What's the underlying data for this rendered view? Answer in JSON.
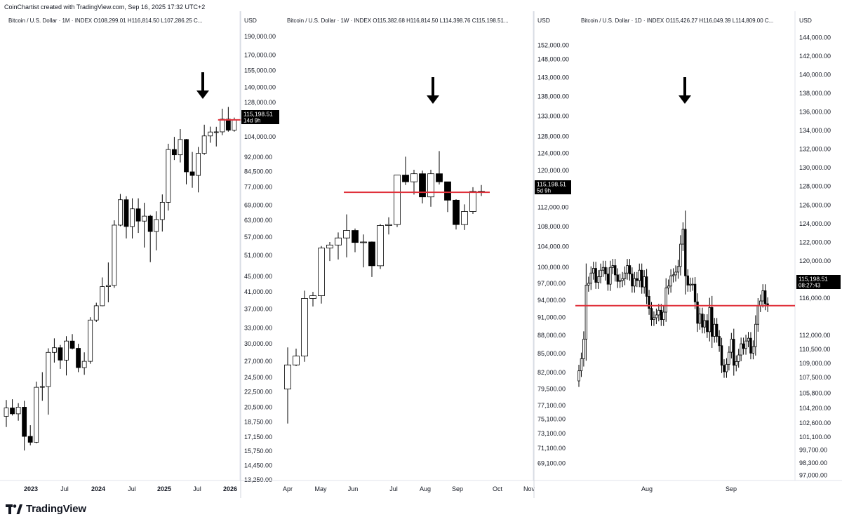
{
  "credit": "CoinChartist created with TradingView.com, Sep 16, 2025 17:32 UTC+2",
  "brand": "TradingView",
  "colors": {
    "red_line": "#e0303a",
    "candle_up": "#ffffff",
    "candle_down": "#000000",
    "price_tag": "#000000"
  },
  "chart_data": [
    {
      "type": "candlestick",
      "header": "Bitcoin / U.S. Dollar · 1M · INDEX  O108,299.01  H116,814.50  L107,286.25  C...",
      "axis_unit": "USD",
      "scale": "log",
      "ylim": [
        13250,
        200000
      ],
      "y_ticks": [
        "190,000.00",
        "170,000.00",
        "155,000.00",
        "140,000.00",
        "128,000.00",
        "104,000.00",
        "92,000.00",
        "84,500.00",
        "77,000.00",
        "69,000.00",
        "63,000.00",
        "57,000.00",
        "51,000.00",
        "45,000.00",
        "41,000.00",
        "37,000.00",
        "33,000.00",
        "30,000.00",
        "27,000.00",
        "24,500.00",
        "22,500.00",
        "20,500.00",
        "18,750.00",
        "17,150.00",
        "15,750.00",
        "14,450.00",
        "13,250.00"
      ],
      "x_ticks": [
        "2023",
        "Jul",
        "2024",
        "Jul",
        "2025",
        "Jul",
        "2026"
      ],
      "price_tag": {
        "value": "115,198.51",
        "sub": "14d 9h"
      },
      "horizontal_line": 115198.51,
      "annotation": "arrow pointing down at latest candles",
      "candles": [
        {
          "o": 19400,
          "h": 21400,
          "l": 18200,
          "c": 20400
        },
        {
          "o": 20400,
          "h": 21500,
          "l": 19500,
          "c": 19700
        },
        {
          "o": 19700,
          "h": 21000,
          "l": 18900,
          "c": 20500
        },
        {
          "o": 20500,
          "h": 21300,
          "l": 15800,
          "c": 17200
        },
        {
          "o": 17200,
          "h": 18400,
          "l": 16300,
          "c": 16600
        },
        {
          "o": 16600,
          "h": 23900,
          "l": 16500,
          "c": 23100
        },
        {
          "o": 23100,
          "h": 25300,
          "l": 21300,
          "c": 23200
        },
        {
          "o": 23200,
          "h": 29200,
          "l": 19600,
          "c": 28500
        },
        {
          "o": 28500,
          "h": 31000,
          "l": 26800,
          "c": 29300
        },
        {
          "o": 29300,
          "h": 29800,
          "l": 25800,
          "c": 27200
        },
        {
          "o": 27200,
          "h": 31400,
          "l": 24800,
          "c": 30500
        },
        {
          "o": 30500,
          "h": 31800,
          "l": 29000,
          "c": 29200
        },
        {
          "o": 29200,
          "h": 30000,
          "l": 25300,
          "c": 26000
        },
        {
          "o": 26000,
          "h": 28500,
          "l": 24900,
          "c": 27000
        },
        {
          "o": 27000,
          "h": 35200,
          "l": 26600,
          "c": 34600
        },
        {
          "o": 34600,
          "h": 38400,
          "l": 34200,
          "c": 37700
        },
        {
          "o": 37700,
          "h": 44700,
          "l": 37600,
          "c": 42300
        },
        {
          "o": 42300,
          "h": 48900,
          "l": 38500,
          "c": 42600
        },
        {
          "o": 42600,
          "h": 63000,
          "l": 42000,
          "c": 61200
        },
        {
          "o": 61200,
          "h": 73800,
          "l": 60800,
          "c": 71300
        },
        {
          "o": 71300,
          "h": 72800,
          "l": 56500,
          "c": 60700
        },
        {
          "o": 60700,
          "h": 71900,
          "l": 56500,
          "c": 67500
        },
        {
          "o": 67500,
          "h": 71900,
          "l": 58400,
          "c": 62700
        },
        {
          "o": 62700,
          "h": 70000,
          "l": 53500,
          "c": 64600
        },
        {
          "o": 64600,
          "h": 65100,
          "l": 49000,
          "c": 58900
        },
        {
          "o": 58900,
          "h": 66500,
          "l": 52600,
          "c": 63300
        },
        {
          "o": 63300,
          "h": 73600,
          "l": 58900,
          "c": 70200
        },
        {
          "o": 70200,
          "h": 99800,
          "l": 66800,
          "c": 96400
        },
        {
          "o": 96400,
          "h": 104000,
          "l": 90500,
          "c": 93400
        },
        {
          "o": 93400,
          "h": 109000,
          "l": 89200,
          "c": 102400
        },
        {
          "o": 102400,
          "h": 102700,
          "l": 78200,
          "c": 84300
        },
        {
          "o": 84300,
          "h": 95000,
          "l": 76600,
          "c": 82500
        },
        {
          "o": 82500,
          "h": 97900,
          "l": 74500,
          "c": 94200
        },
        {
          "o": 94200,
          "h": 111900,
          "l": 93400,
          "c": 104600
        },
        {
          "o": 104600,
          "h": 110600,
          "l": 100400,
          "c": 107100
        },
        {
          "o": 107100,
          "h": 110500,
          "l": 98200,
          "c": 107200
        },
        {
          "o": 107200,
          "h": 123200,
          "l": 105100,
          "c": 115700
        },
        {
          "o": 115700,
          "h": 124500,
          "l": 107300,
          "c": 108300
        },
        {
          "o": 108300,
          "h": 116800,
          "l": 107300,
          "c": 115200
        }
      ]
    },
    {
      "type": "candlestick",
      "header": "Bitcoin / U.S. Dollar · 1W · INDEX  O115,382.68  H116,814.50  L114,398.76  C115,198.51...",
      "axis_unit": "USD",
      "scale": "log",
      "ylim": [
        67000,
        157000
      ],
      "y_ticks": [
        "152,000.00",
        "148,000.00",
        "143,000.00",
        "138,000.00",
        "133,000.00",
        "128,000.00",
        "124,000.00",
        "120,000.00",
        "116,000.00",
        "112,000.00",
        "108,000.00",
        "104,000.00",
        "100,000.00",
        "97,000.00",
        "94,000.00",
        "91,000.00",
        "88,000.00",
        "85,000.00",
        "82,000.00",
        "79,500.00",
        "77,100.00",
        "75,100.00",
        "73,100.00",
        "71,100.00",
        "69,100.00"
      ],
      "x_ticks": [
        "Apr",
        "May",
        "Jun",
        "Jul",
        "Aug",
        "Sep",
        "Oct",
        "Nov"
      ],
      "price_tag": {
        "value": "115,198.51",
        "sub": "5d 9h"
      },
      "horizontal_line": 115198.51,
      "annotation": "arrow pointing down at August peak",
      "candles": [
        {
          "o": 79500,
          "h": 86000,
          "l": 74500,
          "c": 83200
        },
        {
          "o": 83200,
          "h": 85800,
          "l": 83000,
          "c": 84600
        },
        {
          "o": 84600,
          "h": 95700,
          "l": 83700,
          "c": 94300
        },
        {
          "o": 94300,
          "h": 95500,
          "l": 92900,
          "c": 94800
        },
        {
          "o": 94800,
          "h": 104100,
          "l": 93400,
          "c": 103700
        },
        {
          "o": 103700,
          "h": 104900,
          "l": 101200,
          "c": 104300
        },
        {
          "o": 104300,
          "h": 106800,
          "l": 101500,
          "c": 105700
        },
        {
          "o": 105700,
          "h": 110500,
          "l": 101900,
          "c": 107200
        },
        {
          "o": 107200,
          "h": 107600,
          "l": 102900,
          "c": 104800
        },
        {
          "o": 104800,
          "h": 106400,
          "l": 100000,
          "c": 104900
        },
        {
          "o": 104900,
          "h": 105000,
          "l": 98200,
          "c": 100300
        },
        {
          "o": 100300,
          "h": 108500,
          "l": 99700,
          "c": 108200
        },
        {
          "o": 108200,
          "h": 109900,
          "l": 106400,
          "c": 108400
        },
        {
          "o": 108400,
          "h": 118800,
          "l": 107900,
          "c": 119000
        },
        {
          "o": 119000,
          "h": 123200,
          "l": 116800,
          "c": 117500
        },
        {
          "o": 117500,
          "h": 120200,
          "l": 114700,
          "c": 119300
        },
        {
          "o": 119300,
          "h": 120000,
          "l": 112800,
          "c": 114200
        },
        {
          "o": 114200,
          "h": 120200,
          "l": 112100,
          "c": 119300
        },
        {
          "o": 119300,
          "h": 124500,
          "l": 116900,
          "c": 117500
        },
        {
          "o": 117500,
          "h": 117500,
          "l": 111000,
          "c": 113500
        },
        {
          "o": 113500,
          "h": 113700,
          "l": 107400,
          "c": 108400
        },
        {
          "o": 108400,
          "h": 112600,
          "l": 107300,
          "c": 111100
        },
        {
          "o": 111100,
          "h": 116300,
          "l": 110600,
          "c": 115400
        },
        {
          "o": 115400,
          "h": 116800,
          "l": 114400,
          "c": 115200
        }
      ]
    },
    {
      "type": "candlestick",
      "header": "Bitcoin / U.S. Dollar · 1D · INDEX  O115,426.27  H116,049.39  L114,809.00  C...",
      "axis_unit": "USD",
      "scale": "linear",
      "ylim": [
        96500,
        145000
      ],
      "y_ticks": [
        "144,000.00",
        "142,000.00",
        "140,000.00",
        "138,000.00",
        "136,000.00",
        "134,000.00",
        "132,000.00",
        "130,000.00",
        "128,000.00",
        "126,000.00",
        "124,000.00",
        "122,000.00",
        "120,000.00",
        "118,000.00",
        "116,000.00",
        "112,000.00",
        "110,500.00",
        "109,000.00",
        "107,500.00",
        "105,800.00",
        "104,200.00",
        "102,600.00",
        "101,100.00",
        "99,700.00",
        "98,300.00",
        "97,000.00"
      ],
      "x_ticks": [
        "Aug",
        "Sep"
      ],
      "price_tag": {
        "value": "115,198.51",
        "sub": "08:27:43"
      },
      "horizontal_line": 115198.51,
      "annotation": "arrow pointing down at August 14 high",
      "closes": [
        108200,
        109500,
        111600,
        117400,
        117600,
        118700,
        119200,
        117700,
        118300,
        119000,
        119300,
        118600,
        117500,
        119300,
        119500,
        118500,
        117800,
        117900,
        118100,
        118700,
        119500,
        118600,
        117300,
        118100,
        117900,
        119000,
        117200,
        118300,
        116200,
        114900,
        113700,
        113900,
        114200,
        114700,
        113700,
        114500,
        117100,
        117300,
        118400,
        118500,
        118800,
        119400,
        121800,
        123400,
        118400,
        117400,
        117500,
        117500,
        115600,
        113300,
        114300,
        112900,
        113600,
        112400,
        115000,
        111900,
        113200,
        111900,
        110900,
        108800,
        108100,
        108900,
        110200,
        111600,
        108800,
        109200,
        109900,
        111100,
        110600,
        111400,
        111700,
        110100,
        110800,
        113200,
        115200,
        115700,
        116800,
        115400,
        115200
      ]
    }
  ]
}
